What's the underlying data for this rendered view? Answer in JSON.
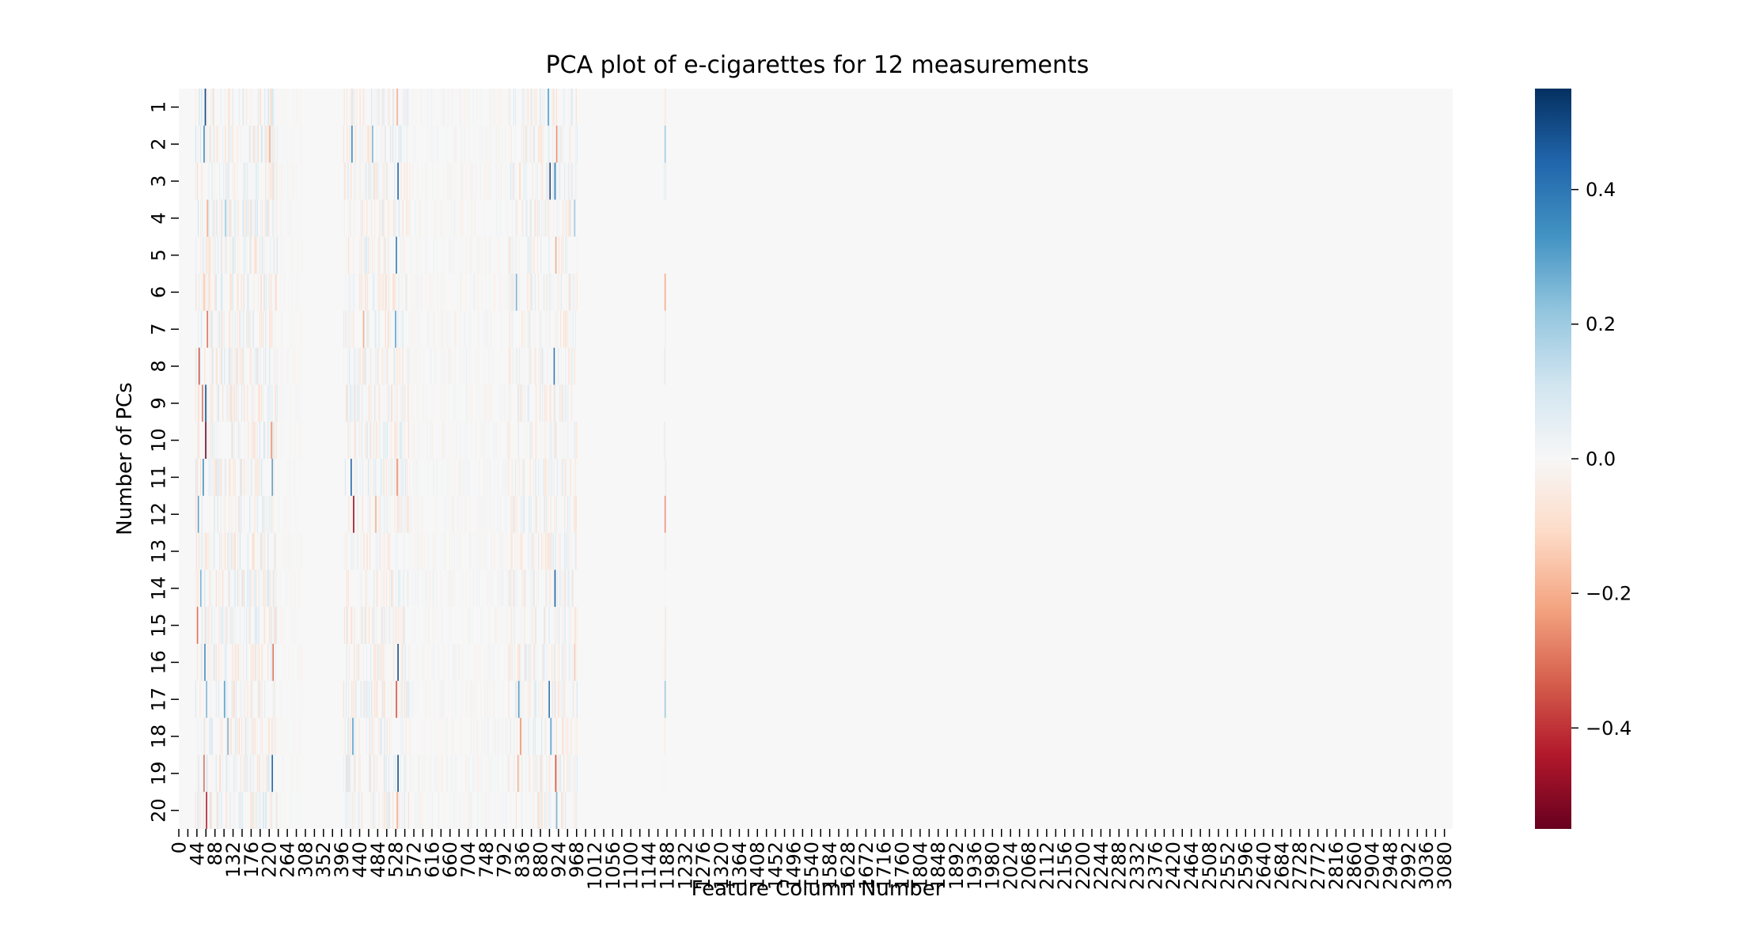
{
  "chart_data": {
    "type": "heatmap",
    "title": "PCA plot of e-cigarettes for 12 measurements",
    "xlabel": "Feature Column Number",
    "ylabel": "Number of PCs",
    "rows": [
      "1",
      "2",
      "3",
      "4",
      "5",
      "6",
      "7",
      "8",
      "9",
      "10",
      "11",
      "12",
      "13",
      "14",
      "15",
      "16",
      "17",
      "18",
      "19",
      "20"
    ],
    "x_range": [
      0,
      3100
    ],
    "x_tick_step": 22,
    "x_tick_label_step": 44,
    "colorbar": {
      "colormap": "RdBu",
      "vmin": -0.55,
      "vmax": 0.55,
      "ticks": [
        0.4,
        0.2,
        0.0,
        -0.2,
        -0.4
      ],
      "tick_labels": [
        "0.4",
        "0.2",
        "0.0",
        "−0.2",
        "−0.4"
      ],
      "colors": [
        "#67001f",
        "#b2182b",
        "#d6604d",
        "#f4a582",
        "#fddbc7",
        "#f7f7f7",
        "#d1e5f0",
        "#92c5de",
        "#4393c3",
        "#2166ac",
        "#053061"
      ]
    },
    "strong_cells": [
      {
        "col": 63,
        "row": 1,
        "value": 0.5
      },
      {
        "col": 60,
        "row": 2,
        "value": 0.35
      },
      {
        "col": 68,
        "row": 4,
        "value": -0.2
      },
      {
        "col": 112,
        "row": 4,
        "value": 0.2
      },
      {
        "col": 60,
        "row": 6,
        "value": -0.15
      },
      {
        "col": 68,
        "row": 7,
        "value": -0.3
      },
      {
        "col": 48,
        "row": 8,
        "value": -0.35
      },
      {
        "col": 64,
        "row": 9,
        "value": 0.5
      },
      {
        "col": 56,
        "row": 9,
        "value": -0.3
      },
      {
        "col": 64,
        "row": 10,
        "value": -0.55
      },
      {
        "col": 58,
        "row": 11,
        "value": 0.35
      },
      {
        "col": 46,
        "row": 12,
        "value": 0.3
      },
      {
        "col": 52,
        "row": 14,
        "value": 0.25
      },
      {
        "col": 44,
        "row": 15,
        "value": -0.3
      },
      {
        "col": 62,
        "row": 16,
        "value": 0.35
      },
      {
        "col": 66,
        "row": 17,
        "value": 0.25
      },
      {
        "col": 60,
        "row": 19,
        "value": -0.3
      },
      {
        "col": 66,
        "row": 20,
        "value": -0.45
      },
      {
        "col": 110,
        "row": 17,
        "value": 0.3
      },
      {
        "col": 118,
        "row": 18,
        "value": 0.25
      },
      {
        "col": 220,
        "row": 2,
        "value": -0.2
      },
      {
        "col": 224,
        "row": 10,
        "value": -0.25
      },
      {
        "col": 226,
        "row": 11,
        "value": 0.3
      },
      {
        "col": 228,
        "row": 16,
        "value": -0.3
      },
      {
        "col": 226,
        "row": 19,
        "value": 0.45
      },
      {
        "col": 420,
        "row": 2,
        "value": 0.35
      },
      {
        "col": 418,
        "row": 11,
        "value": 0.45
      },
      {
        "col": 424,
        "row": 12,
        "value": -0.5
      },
      {
        "col": 422,
        "row": 18,
        "value": 0.3
      },
      {
        "col": 448,
        "row": 7,
        "value": -0.2
      },
      {
        "col": 470,
        "row": 2,
        "value": 0.25
      },
      {
        "col": 478,
        "row": 12,
        "value": -0.2
      },
      {
        "col": 530,
        "row": 1,
        "value": -0.2
      },
      {
        "col": 532,
        "row": 3,
        "value": 0.45
      },
      {
        "col": 528,
        "row": 5,
        "value": 0.4
      },
      {
        "col": 526,
        "row": 7,
        "value": 0.3
      },
      {
        "col": 530,
        "row": 11,
        "value": -0.25
      },
      {
        "col": 532,
        "row": 16,
        "value": 0.5
      },
      {
        "col": 528,
        "row": 17,
        "value": -0.35
      },
      {
        "col": 532,
        "row": 19,
        "value": 0.5
      },
      {
        "col": 530,
        "row": 20,
        "value": -0.2
      },
      {
        "col": 820,
        "row": 6,
        "value": 0.25
      },
      {
        "col": 826,
        "row": 17,
        "value": 0.3
      },
      {
        "col": 830,
        "row": 18,
        "value": -0.25
      },
      {
        "col": 824,
        "row": 19,
        "value": -0.2
      },
      {
        "col": 898,
        "row": 1,
        "value": 0.3
      },
      {
        "col": 902,
        "row": 3,
        "value": 0.5
      },
      {
        "col": 914,
        "row": 3,
        "value": 0.4
      },
      {
        "col": 918,
        "row": 2,
        "value": -0.25
      },
      {
        "col": 916,
        "row": 5,
        "value": -0.2
      },
      {
        "col": 912,
        "row": 8,
        "value": 0.4
      },
      {
        "col": 914,
        "row": 14,
        "value": 0.45
      },
      {
        "col": 900,
        "row": 17,
        "value": 0.4
      },
      {
        "col": 904,
        "row": 18,
        "value": 0.3
      },
      {
        "col": 916,
        "row": 19,
        "value": -0.35
      },
      {
        "col": 918,
        "row": 20,
        "value": 0.25
      },
      {
        "col": 962,
        "row": 4,
        "value": 0.2
      },
      {
        "col": 962,
        "row": 16,
        "value": -0.15
      },
      {
        "col": 1182,
        "row": 2,
        "value": 0.2
      },
      {
        "col": 1182,
        "row": 6,
        "value": -0.2
      },
      {
        "col": 1182,
        "row": 12,
        "value": -0.25
      },
      {
        "col": 1182,
        "row": 17,
        "value": 0.2
      }
    ],
    "weak_bands": [
      {
        "from": 40,
        "to": 240,
        "amplitude": 0.1
      },
      {
        "from": 240,
        "to": 300,
        "amplitude": 0.02
      },
      {
        "from": 400,
        "to": 560,
        "amplitude": 0.09
      },
      {
        "from": 560,
        "to": 800,
        "amplitude": 0.03
      },
      {
        "from": 800,
        "to": 970,
        "amplitude": 0.09
      },
      {
        "from": 1180,
        "to": 1186,
        "amplitude": 0.06
      }
    ]
  }
}
